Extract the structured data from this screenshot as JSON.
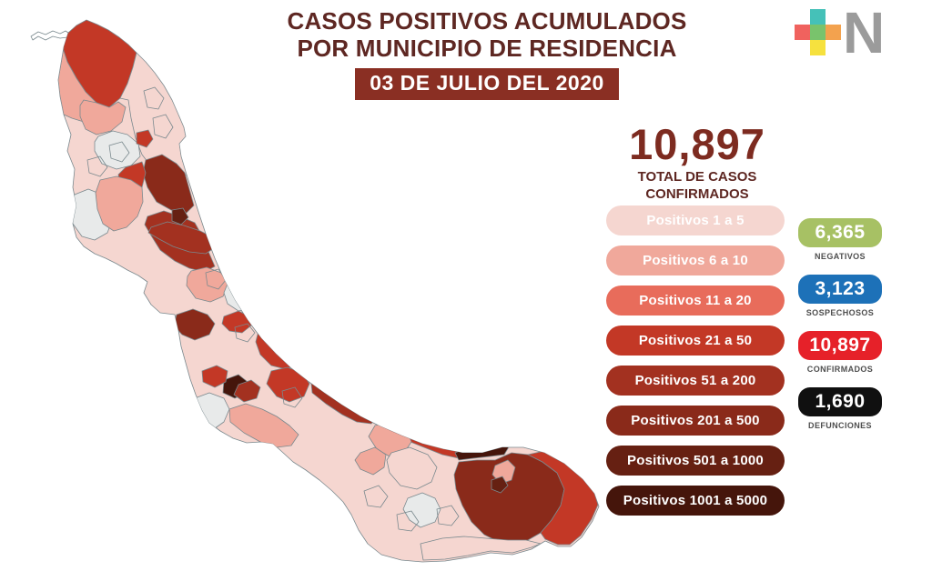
{
  "header": {
    "title_line1": "CASOS POSITIVOS ACUMULADOS",
    "title_line2": "POR MUNICIPIO DE RESIDENCIA",
    "date_banner": "03 DE JULIO DEL 2020",
    "title_color": "#5e2722",
    "banner_bg": "#8a2f23"
  },
  "total": {
    "value": "10,897",
    "label_line1": "TOTAL DE CASOS",
    "label_line2": "CONFIRMADOS",
    "number_color": "#7d2b20"
  },
  "legend": {
    "items": [
      {
        "label": "Positivos 1 a 5",
        "color": "#f5d6d0"
      },
      {
        "label": "Positivos 6 a 10",
        "color": "#f0a89b"
      },
      {
        "label": "Positivos 11 a 20",
        "color": "#e86c5b"
      },
      {
        "label": "Positivos 21 a 50",
        "color": "#c33826"
      },
      {
        "label": "Positivos 51 a 200",
        "color": "#a33120"
      },
      {
        "label": "Positivos 201 a 500",
        "color": "#8a2a1a"
      },
      {
        "label": "Positivos 501 a 1000",
        "color": "#662012"
      },
      {
        "label": "Positivos 1001 a 5000",
        "color": "#45150b"
      }
    ]
  },
  "stats": {
    "items": [
      {
        "value": "6,365",
        "label": "NEGATIVOS",
        "color": "#a7c164"
      },
      {
        "value": "3,123",
        "label": "SOSPECHOSOS",
        "color": "#1d71b8"
      },
      {
        "value": "10,897",
        "label": "CONFIRMADOS",
        "color": "#e62129"
      },
      {
        "value": "1,690",
        "label": "DEFUNCIONES",
        "color": "#101010"
      }
    ]
  },
  "logo": {
    "letter": "N",
    "squares": [
      {
        "name": "top",
        "color": "#45c1b8"
      },
      {
        "name": "left",
        "color": "#f0625e"
      },
      {
        "name": "center",
        "color": "#79c36c"
      },
      {
        "name": "right",
        "color": "#f3a24e"
      },
      {
        "name": "bottom",
        "color": "#f6e13e"
      }
    ]
  },
  "map": {
    "name": "mapa-veracruz-casos-por-municipio",
    "no_data_color": "#e8eaea",
    "border_color": "#7a898e"
  }
}
